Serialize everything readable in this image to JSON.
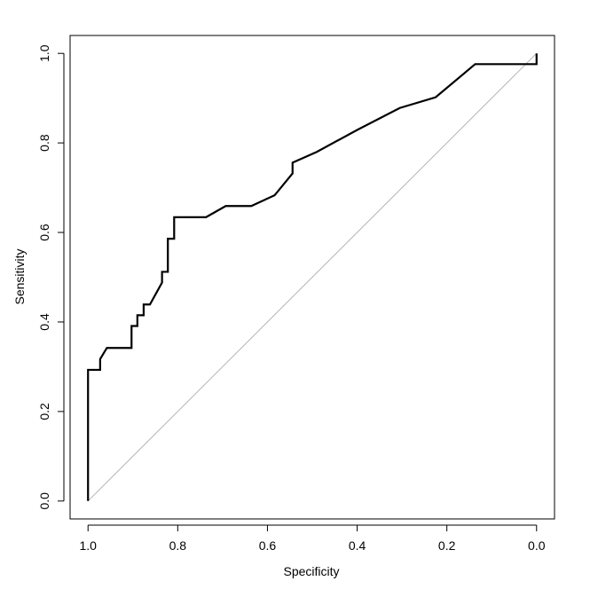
{
  "chart_data": {
    "type": "line",
    "xlabel": "Specificity",
    "ylabel": "Sensitivity",
    "x_axis_reversed": true,
    "xlim": [
      1.04,
      -0.04
    ],
    "ylim": [
      -0.04,
      1.04
    ],
    "x_ticks": [
      1.0,
      0.8,
      0.6,
      0.4,
      0.2,
      0.0
    ],
    "x_tick_labels": [
      "1.0",
      "0.8",
      "0.6",
      "0.4",
      "0.2",
      "0.0"
    ],
    "y_ticks": [
      0.0,
      0.2,
      0.4,
      0.6,
      0.8,
      1.0
    ],
    "y_tick_labels": [
      "0.0",
      "0.2",
      "0.4",
      "0.6",
      "0.8",
      "1.0"
    ],
    "grid": false,
    "series": [
      {
        "color": "#000000",
        "points": [
          [
            1.0,
            0.0
          ],
          [
            1.0,
            0.293
          ],
          [
            0.973,
            0.293
          ],
          [
            0.973,
            0.317
          ],
          [
            0.958,
            0.342
          ],
          [
            0.903,
            0.342
          ],
          [
            0.903,
            0.391
          ],
          [
            0.89,
            0.391
          ],
          [
            0.89,
            0.415
          ],
          [
            0.876,
            0.415
          ],
          [
            0.876,
            0.439
          ],
          [
            0.862,
            0.439
          ],
          [
            0.835,
            0.488
          ],
          [
            0.835,
            0.512
          ],
          [
            0.822,
            0.512
          ],
          [
            0.822,
            0.586
          ],
          [
            0.808,
            0.586
          ],
          [
            0.808,
            0.634
          ],
          [
            0.737,
            0.634
          ],
          [
            0.693,
            0.659
          ],
          [
            0.636,
            0.659
          ],
          [
            0.584,
            0.683
          ],
          [
            0.544,
            0.732
          ],
          [
            0.544,
            0.756
          ],
          [
            0.49,
            0.78
          ],
          [
            0.4,
            0.829
          ],
          [
            0.305,
            0.878
          ],
          [
            0.225,
            0.902
          ],
          [
            0.137,
            0.976
          ],
          [
            0.0,
            0.976
          ],
          [
            0.0,
            1.0
          ]
        ]
      }
    ],
    "reference_line": {
      "from": [
        1.0,
        0.0
      ],
      "to": [
        0.0,
        1.0
      ],
      "color": "#b3b3b3"
    }
  }
}
